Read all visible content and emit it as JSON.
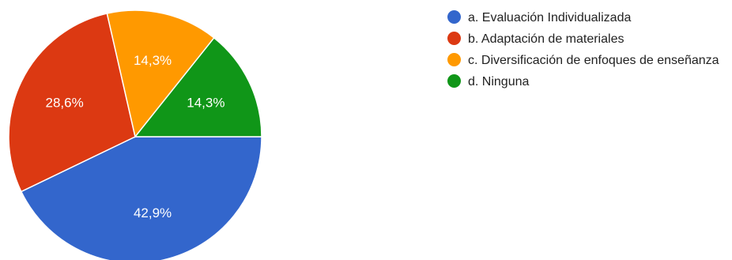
{
  "chart_data": {
    "type": "pie",
    "title": "",
    "legend_position": "right",
    "series": [
      {
        "categories": [
          "a. Evaluación Individualizada",
          "b. Adaptación de materiales",
          "c. Diversificación de enfoques de enseñanza",
          "d. Ninguna"
        ],
        "values": [
          42.9,
          28.6,
          14.3,
          14.3
        ],
        "labels": [
          "42,9%",
          "28,6%",
          "14,3%",
          "14,3%"
        ],
        "colors": [
          "#3366cc",
          "#dc3912",
          "#ff9900",
          "#109618"
        ]
      }
    ]
  }
}
